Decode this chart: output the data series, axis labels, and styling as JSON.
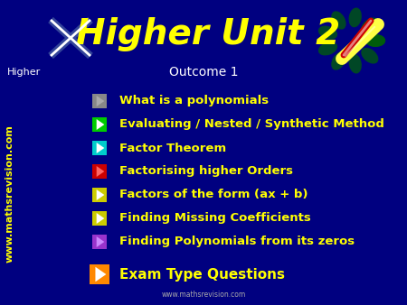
{
  "bg_color": "#000080",
  "title": "Higher Unit 2",
  "title_color": "#FFFF00",
  "title_fontsize": 28,
  "subtitle": "Outcome 1",
  "subtitle_color": "#FFFFFF",
  "subtitle_fontsize": 10,
  "higher_label": "Higher",
  "higher_color": "#FFFFFF",
  "watermark": "www.mathsrevision.com",
  "side_text": "www.mathsrevision.com",
  "side_color": "#FFFF00",
  "items": [
    {
      "text": "What is a polynomials",
      "icon_color": "#888888",
      "tri_color": "#AAAAAA"
    },
    {
      "text": "Evaluating / Nested / Synthetic Method",
      "icon_color": "#00CC00",
      "tri_color": "#FFFFFF"
    },
    {
      "text": "Factor Theorem",
      "icon_color": "#00CCCC",
      "tri_color": "#FFFFFF"
    },
    {
      "text": "Factorising higher Orders",
      "icon_color": "#CC0000",
      "tri_color": "#FF6666"
    },
    {
      "text": "Factors of the form (ax + b)",
      "icon_color": "#CCCC00",
      "tri_color": "#FFFFFF"
    },
    {
      "text": "Finding Missing Coefficients",
      "icon_color": "#CCCC00",
      "tri_color": "#FFFFFF"
    },
    {
      "text": "Finding Polynomials from its zeros",
      "icon_color": "#9933CC",
      "tri_color": "#CC88FF"
    }
  ],
  "exam_item": {
    "text": "Exam Type Questions",
    "icon_color": "#FF8800",
    "tri_color": "#FFFFFF"
  },
  "item_text_color": "#FFFF00",
  "item_fontsize": 9.5,
  "exam_fontsize": 11
}
